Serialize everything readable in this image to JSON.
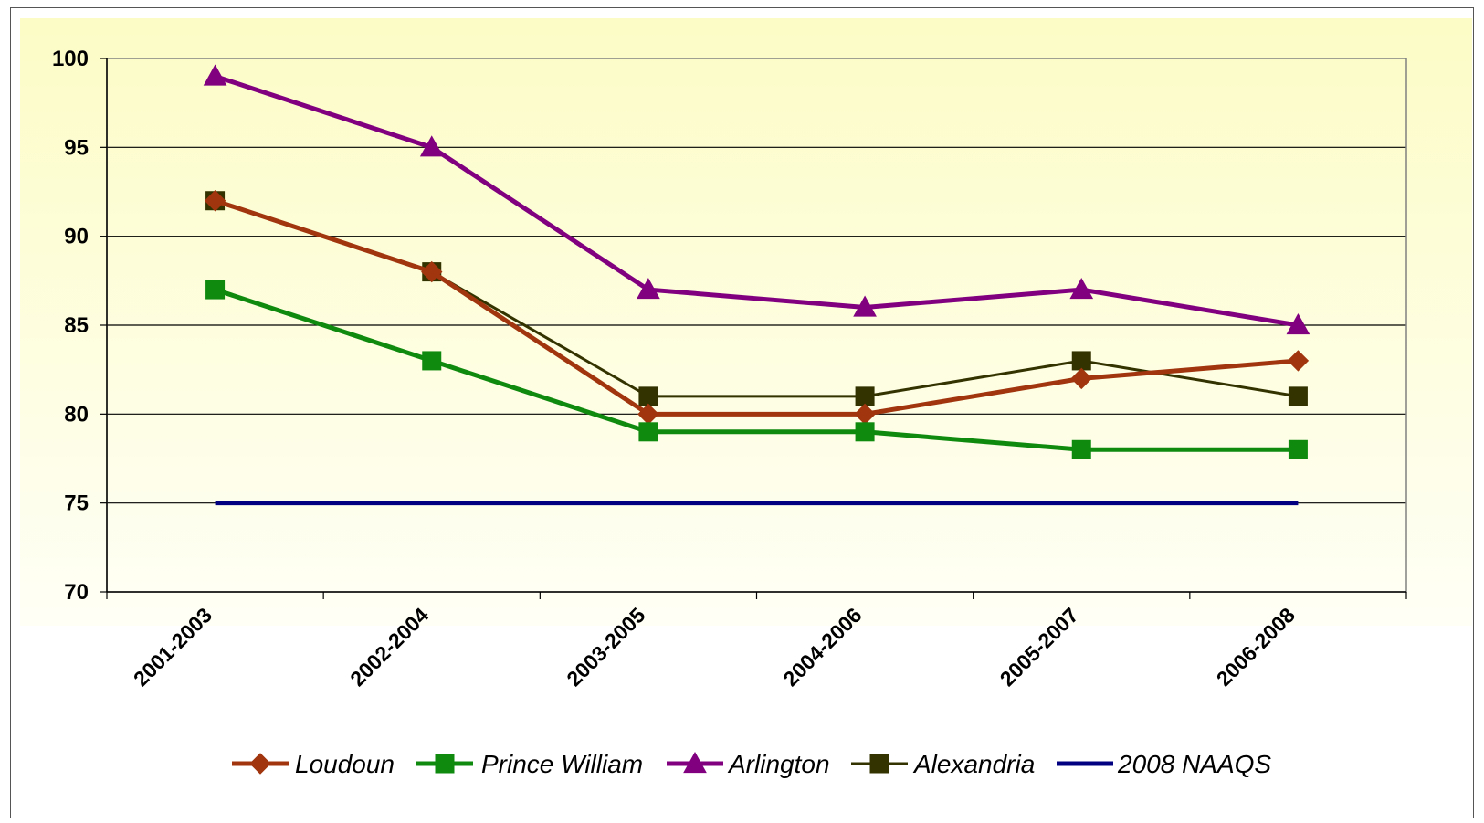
{
  "chart_data": {
    "type": "line",
    "title": "",
    "xlabel": "",
    "ylabel": "",
    "categories": [
      "2001-2003",
      "2002-2004",
      "2003-2005",
      "2004-2006",
      "2005-2007",
      "2006-2008"
    ],
    "ylim": [
      70,
      100
    ],
    "yticks": [
      "70",
      "75",
      "80",
      "85",
      "90",
      "95",
      "100"
    ],
    "grid": true,
    "legend_position": "bottom",
    "plot_background": "light yellow gradient",
    "series": [
      {
        "name": "Loudoun",
        "values": [
          92,
          88,
          80,
          80,
          82,
          83
        ],
        "color": "#A0350E",
        "marker": "diamond"
      },
      {
        "name": "Prince William",
        "values": [
          87,
          83,
          79,
          79,
          78,
          78
        ],
        "color": "#0F8A0F",
        "marker": "square"
      },
      {
        "name": "Arlington",
        "values": [
          99,
          95,
          87,
          86,
          87,
          85
        ],
        "color": "#800080",
        "marker": "triangle"
      },
      {
        "name": "Alexandria",
        "values": [
          92,
          88,
          81,
          81,
          83,
          81
        ],
        "color": "#333300",
        "marker": "square"
      },
      {
        "name": "2008 NAAQS",
        "values": [
          75,
          75,
          75,
          75,
          75,
          75
        ],
        "color": "#000080",
        "marker": "none"
      }
    ]
  }
}
